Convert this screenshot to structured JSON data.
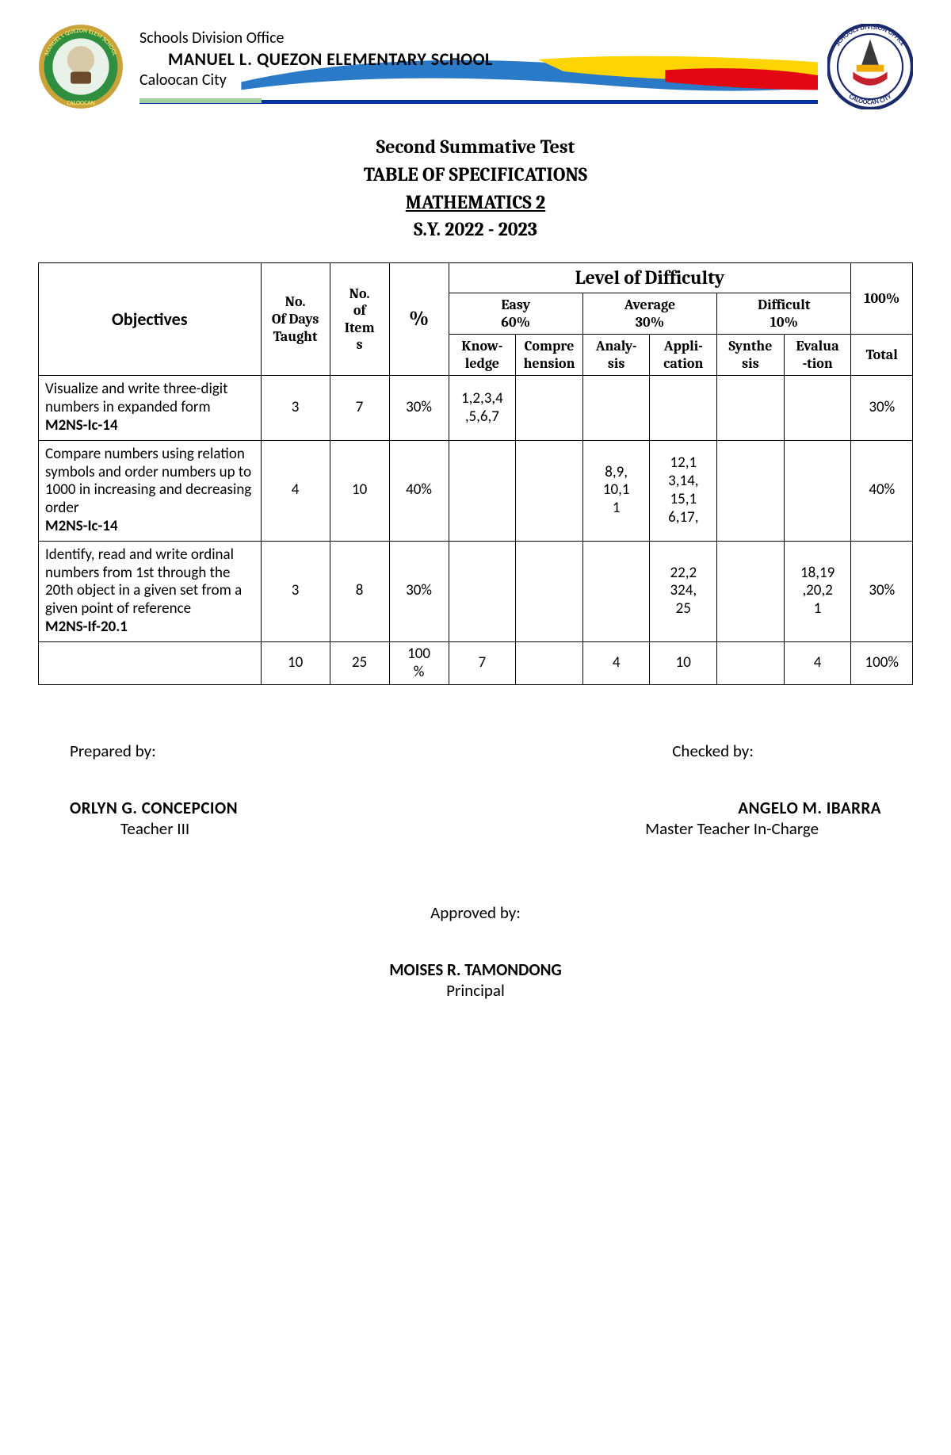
{
  "header": {
    "office": "Schools Division Office",
    "school": "MANUEL L. QUEZON ELEMENTARY SCHOOL",
    "city": "Caloocan City",
    "ribbon_colors": {
      "blue": "#2a7ac7",
      "yellow": "#ffd400",
      "red": "#e30613"
    },
    "rule_colors": {
      "green": "#9fcf9f",
      "blue": "#0033a0"
    },
    "logo_left": {
      "ring_outer": "#c9a23a",
      "ring_inner": "#2f8f3f",
      "inner_bg": "#e8f2e8",
      "text": "CALOOCAN"
    },
    "logo_right": {
      "ring": "#1b2a6b",
      "accent": "#f2a900",
      "ribbon": "#c61f2d",
      "top_text": "SCHOOLS DIVISION",
      "side_text": "OFFICE",
      "bottom_text": "CALOOCAN CITY"
    }
  },
  "title": {
    "line1": "Second Summative Test",
    "line2": "TABLE OF SPECIFICATIONS",
    "line3": "MATHEMATICS 2",
    "line4": "S.Y. 2022 - 2023"
  },
  "table": {
    "head": {
      "objectives": "Objectives",
      "days": "No. Of Days Taught",
      "items": "No. of Items",
      "percent": "%",
      "lod": "Level of Difficulty",
      "easy": "Easy",
      "easy_pct": "60%",
      "average": "Average",
      "avg_pct": "30%",
      "difficult": "Difficult",
      "diff_pct": "10%",
      "hundred": "100%",
      "knowledge": "Knowledge",
      "comprehension": "Comprehension",
      "analysis": "Analysis",
      "application": "Application",
      "synthesis": "Synthesis",
      "evaluation": "Evaluation",
      "total": "Total"
    },
    "rows": [
      {
        "objective": "Visualize and write three-digit numbers in expanded form",
        "code": "M2NS-Ic-14",
        "days": "3",
        "items": "7",
        "percent": "30%",
        "knowledge": "1,2,3,4,5,6,7",
        "comprehension": "",
        "analysis": "",
        "application": "",
        "synthesis": "",
        "evaluation": "",
        "total": "30%"
      },
      {
        "objective": "Compare numbers using relation symbols and order numbers up to 1000 in increasing and decreasing order",
        "code": "M2NS-Ic-14",
        "days": "4",
        "items": "10",
        "percent": "40%",
        "knowledge": "",
        "comprehension": "",
        "analysis": "8,9, 10,11",
        "application": "12,13,14, 15,16,17,",
        "synthesis": "",
        "evaluation": "",
        "total": "40%"
      },
      {
        "objective": "Identify, read and write ordinal numbers from 1st through the\n20th object in a given set from a given point of reference",
        "code": "M2NS-If-20.1",
        "days": "3",
        "items": "8",
        "percent": "30%",
        "knowledge": "",
        "comprehension": "",
        "analysis": "",
        "application": "22,2324, 25",
        "synthesis": "",
        "evaluation": "18,19,20,21",
        "total": "30%"
      }
    ],
    "totals": {
      "days": "10",
      "items": "25",
      "percent": "100%",
      "knowledge": "7",
      "comprehension": "",
      "analysis": "4",
      "application": "10",
      "synthesis": "",
      "evaluation": "4",
      "total": "100%"
    }
  },
  "signatures": {
    "prepared_label": "Prepared by:",
    "prepared_name": "ORLYN G. CONCEPCION",
    "prepared_title": "Teacher III",
    "checked_label": "Checked by:",
    "checked_name": "ANGELO M. IBARRA",
    "checked_title": "Master Teacher In-Charge",
    "approved_label": "Approved by:",
    "approved_name": "MOISES R. TAMONDONG",
    "approved_title": "Principal"
  }
}
